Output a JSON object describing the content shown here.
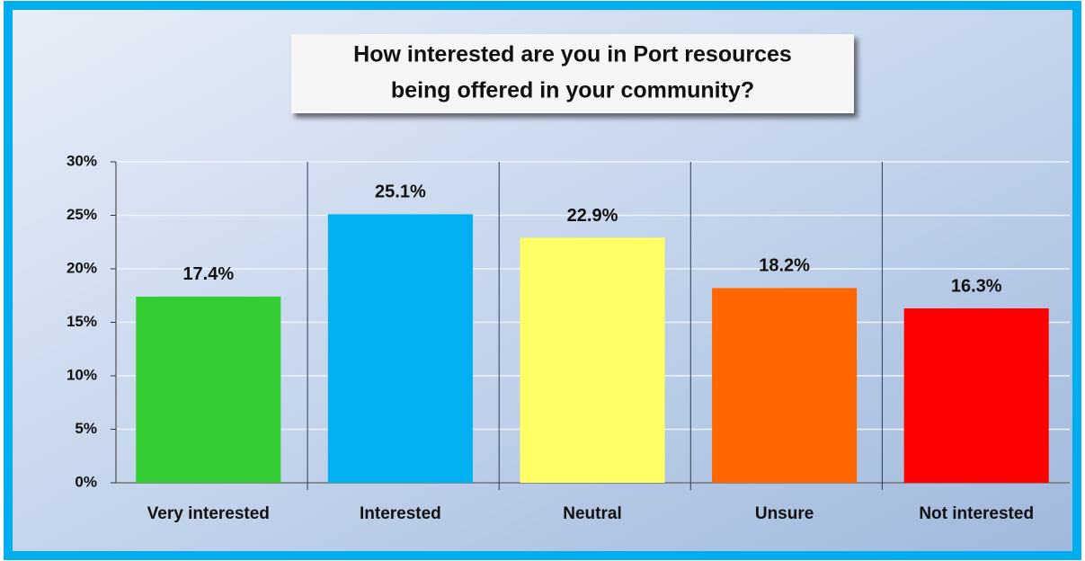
{
  "chart_data": {
    "type": "bar",
    "title": [
      "How interested are you in Port resources",
      "being offered in your community?"
    ],
    "categories": [
      "Very interested",
      "Interested",
      "Neutral",
      "Unsure",
      "Not interested"
    ],
    "values": [
      17.4,
      25.1,
      22.9,
      18.2,
      16.3
    ],
    "value_labels": [
      "17.4%",
      "25.1%",
      "22.9%",
      "18.2%",
      "16.3%"
    ],
    "colors": [
      "#33cc33",
      "#00b0f0",
      "#ffff66",
      "#ff6600",
      "#ff0000"
    ],
    "ylim": [
      0,
      30
    ],
    "yticks": [
      {
        "value": 0,
        "label": "0%"
      },
      {
        "value": 5,
        "label": "5%"
      },
      {
        "value": 10,
        "label": "10%"
      },
      {
        "value": 15,
        "label": "15%"
      },
      {
        "value": 20,
        "label": "20%"
      },
      {
        "value": 25,
        "label": "25%"
      },
      {
        "value": 30,
        "label": "30%"
      }
    ],
    "grid": true
  }
}
